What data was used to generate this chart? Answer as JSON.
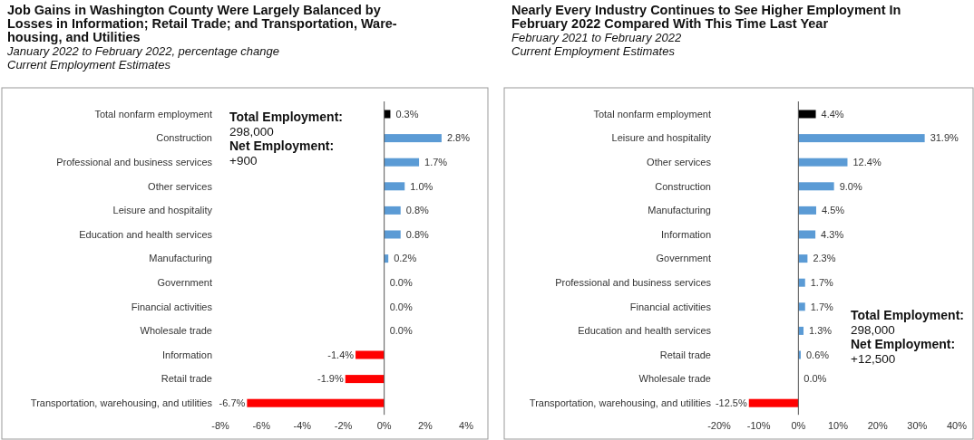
{
  "chart_data": [
    {
      "type": "bar",
      "orientation": "horizontal",
      "title": "Job Gains in Washington County Were Largely Balanced by\nLosses in Information; Retail Trade; and Transportation, Ware-\nhousing, and Utilities",
      "subtitle": "January 2022 to February 2022, percentage change\nCurrent Employment Estimates",
      "categories": [
        "Total nonfarm employment",
        "Construction",
        "Professional and business services",
        "Other services",
        "Leisure and hospitality",
        "Education and health services",
        "Manufacturing",
        "Government",
        "Financial activities",
        "Wholesale trade",
        "Information",
        "Retail trade",
        "Transportation, warehousing, and utilities"
      ],
      "values": [
        0.3,
        2.8,
        1.7,
        1.0,
        0.8,
        0.8,
        0.2,
        0.0,
        0.0,
        0.0,
        -1.4,
        -1.9,
        -6.7
      ],
      "colors": [
        "#000000",
        "#5b9bd5",
        "#5b9bd5",
        "#5b9bd5",
        "#5b9bd5",
        "#5b9bd5",
        "#5b9bd5",
        "#5b9bd5",
        "#5b9bd5",
        "#5b9bd5",
        "#ff0000",
        "#ff0000",
        "#ff0000"
      ],
      "value_labels": [
        "0.3%",
        "2.8%",
        "1.7%",
        "1.0%",
        "0.8%",
        "0.8%",
        "0.2%",
        "0.0%",
        "0.0%",
        "0.0%",
        "-1.4%",
        "-1.9%",
        "-6.7%"
      ],
      "xlim": [
        -8,
        4
      ],
      "xticks": [
        {
          "value": -8,
          "label": "-8%"
        },
        {
          "value": -6,
          "label": "-6%"
        },
        {
          "value": -4,
          "label": "-4%"
        },
        {
          "value": -2,
          "label": "-2%"
        },
        {
          "value": 0,
          "label": "0%"
        },
        {
          "value": 2,
          "label": "2%"
        },
        {
          "value": 4,
          "label": "4%"
        }
      ],
      "annotations": [
        "Total Employment:",
        "298,000",
        "Net Employment:",
        "+900"
      ]
    },
    {
      "type": "bar",
      "orientation": "horizontal",
      "title": "Nearly Every Industry Continues to See Higher Employment In\nFebruary 2022 Compared With This Time Last Year",
      "subtitle": "February 2021 to February 2022\nCurrent Employment Estimates",
      "categories": [
        "Total nonfarm employment",
        "Leisure and hospitality",
        "Other services",
        "Construction",
        "Manufacturing",
        "Information",
        "Government",
        "Professional and business services",
        "Financial activities",
        "Education and health services",
        "Retail trade",
        "Wholesale trade",
        "Transportation, warehousing, and utilities"
      ],
      "values": [
        4.4,
        31.9,
        12.4,
        9.0,
        4.5,
        4.3,
        2.3,
        1.7,
        1.7,
        1.3,
        0.6,
        0.0,
        -12.5
      ],
      "colors": [
        "#000000",
        "#5b9bd5",
        "#5b9bd5",
        "#5b9bd5",
        "#5b9bd5",
        "#5b9bd5",
        "#5b9bd5",
        "#5b9bd5",
        "#5b9bd5",
        "#5b9bd5",
        "#5b9bd5",
        "#5b9bd5",
        "#ff0000"
      ],
      "value_labels": [
        "4.4%",
        "31.9%",
        "12.4%",
        "9.0%",
        "4.5%",
        "4.3%",
        "2.3%",
        "1.7%",
        "1.7%",
        "1.3%",
        "0.6%",
        "0.0%",
        "-12.5%"
      ],
      "xlim": [
        -20,
        40
      ],
      "xticks": [
        {
          "value": -20,
          "label": "-20%"
        },
        {
          "value": -10,
          "label": "-10%"
        },
        {
          "value": 0,
          "label": "0%"
        },
        {
          "value": 10,
          "label": "10%"
        },
        {
          "value": 20,
          "label": "20%"
        },
        {
          "value": 30,
          "label": "30%"
        },
        {
          "value": 40,
          "label": "40%"
        }
      ],
      "annotations": [
        "Total Employment:",
        "298,000",
        "Net Employment:",
        "+12,500"
      ]
    }
  ]
}
